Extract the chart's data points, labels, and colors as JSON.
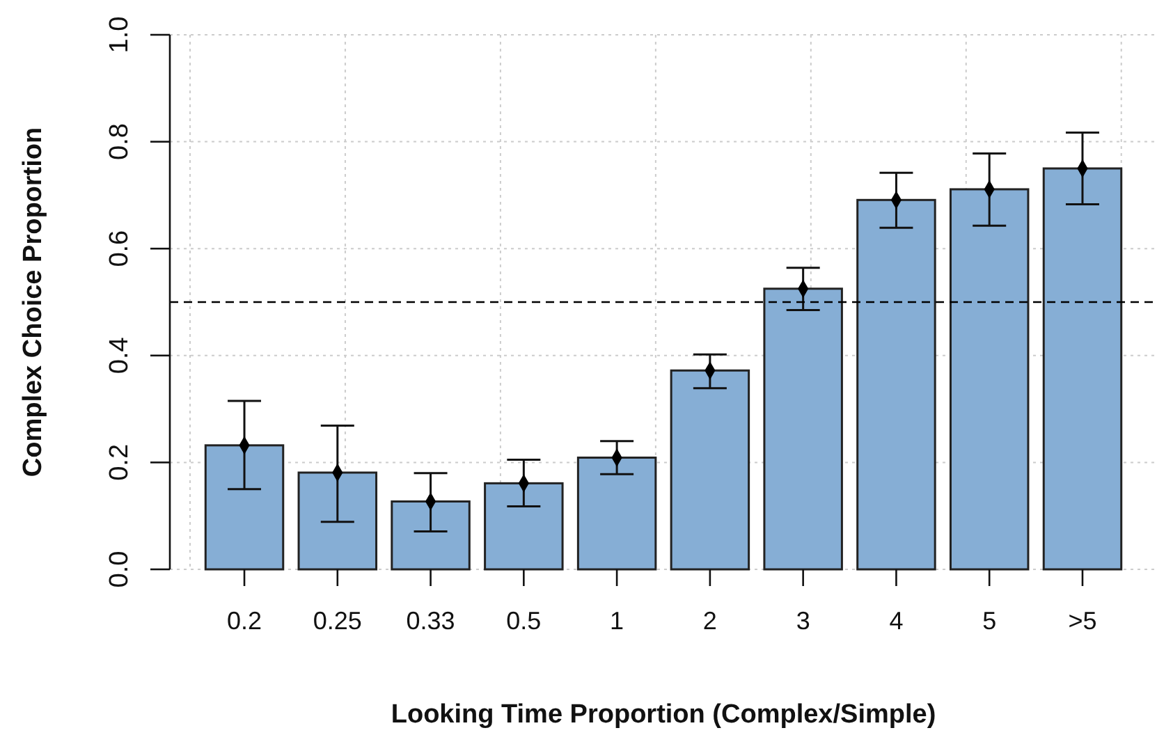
{
  "chart_data": {
    "type": "bar",
    "xlabel": "Looking Time Proportion (Complex/Simple)",
    "ylabel": "Complex Choice Proportion",
    "categories": [
      "0.2",
      "0.25",
      "0.33",
      "0.5",
      "1",
      "2",
      "3",
      "4",
      "5",
      ">5"
    ],
    "series": [
      {
        "color": "#86aed5",
        "values": [
          0.232,
          0.181,
          0.127,
          0.161,
          0.209,
          0.372,
          0.525,
          0.691,
          0.711,
          0.75
        ],
        "errors": [
          [
            0.15,
            0.315
          ],
          [
            0.089,
            0.269
          ],
          [
            0.071,
            0.18
          ],
          [
            0.118,
            0.205
          ],
          [
            0.178,
            0.24
          ],
          [
            0.339,
            0.402
          ],
          [
            0.485,
            0.564
          ],
          [
            0.639,
            0.742
          ],
          [
            0.643,
            0.778
          ],
          [
            0.683,
            0.817
          ]
        ]
      },
      {
        "type": "scatter",
        "color": "#000000",
        "marker": "diamond",
        "x": [
          "0.2",
          "0.25",
          "0.33",
          "0.5",
          "1",
          "2",
          "3",
          "4",
          "5",
          ">5"
        ],
        "values": [
          0.232,
          0.181,
          0.127,
          0.161,
          0.209,
          0.372,
          0.525,
          0.691,
          0.711,
          0.75
        ]
      }
    ],
    "ylim": [
      0,
      1
    ],
    "yticks": [
      {
        "value": 0,
        "label": "0.0"
      },
      {
        "value": 0.2,
        "label": "0.2"
      },
      {
        "value": 0.4,
        "label": "0.4"
      },
      {
        "value": 0.6,
        "label": "0.6"
      },
      {
        "value": 0.8,
        "label": "0.8"
      },
      {
        "value": 1,
        "label": "1.0"
      }
    ],
    "grid": true,
    "ref_lines": [
      {
        "axis": "y",
        "value": 0.5,
        "line_style": "dashed",
        "color": "#000000"
      }
    ]
  }
}
